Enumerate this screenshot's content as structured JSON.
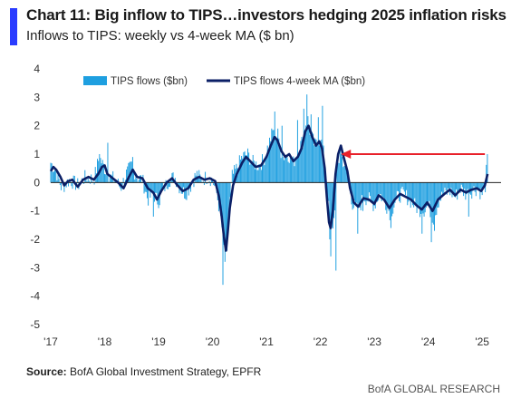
{
  "header": {
    "title": "Chart 11: Big inflow to TIPS…investors hedging 2025 inflation risks",
    "subtitle": "Inflows to TIPS: weekly vs 4-week MA ($ bn)"
  },
  "footer": {
    "source_label": "Source:",
    "source_text": "BofA Global Investment Strategy, EPFR",
    "brand": "BofA GLOBAL RESEARCH"
  },
  "colors": {
    "bars": "#1e9fe0",
    "ma_line": "#0b1f66",
    "arrow": "#e8202a",
    "accent": "#2a3cff",
    "zero_line": "#222222"
  },
  "chart_data": {
    "type": "bar",
    "title": "",
    "xlabel": "",
    "ylabel": "",
    "ylim": [
      -5,
      4
    ],
    "yticks": [
      "4",
      "3",
      "2",
      "1",
      "0",
      "-1",
      "-2",
      "-3",
      "-4",
      "-5"
    ],
    "xticks": [
      "'17",
      "'18",
      "'19",
      "'20",
      "'21",
      "'22",
      "'23",
      "'24",
      "'25"
    ],
    "x_start_year": 2017,
    "x_end_year": 2025.35,
    "legend_position": "top-left",
    "grid": false,
    "series": [
      {
        "name": "TIPS flows ($bn)",
        "type": "bar",
        "anchors": [
          [
            2017.0,
            0.7
          ],
          [
            2017.1,
            0.4
          ],
          [
            2017.2,
            -0.2
          ],
          [
            2017.35,
            0.1
          ],
          [
            2017.5,
            -0.1
          ],
          [
            2017.65,
            0.2
          ],
          [
            2017.8,
            0.1
          ],
          [
            2017.9,
            0.9
          ],
          [
            2018.0,
            0.5
          ],
          [
            2018.1,
            0.2
          ],
          [
            2018.2,
            0.1
          ],
          [
            2018.3,
            -0.2
          ],
          [
            2018.4,
            0.3
          ],
          [
            2018.5,
            0.6
          ],
          [
            2018.6,
            0.2
          ],
          [
            2018.7,
            0.1
          ],
          [
            2018.8,
            -0.6
          ],
          [
            2018.9,
            -0.4
          ],
          [
            2019.0,
            -0.7
          ],
          [
            2019.1,
            -0.2
          ],
          [
            2019.2,
            0.1
          ],
          [
            2019.3,
            0.2
          ],
          [
            2019.4,
            -0.2
          ],
          [
            2019.5,
            -0.4
          ],
          [
            2019.6,
            -0.1
          ],
          [
            2019.7,
            0.3
          ],
          [
            2019.8,
            0.1
          ],
          [
            2019.9,
            0.2
          ],
          [
            2020.0,
            0.1
          ],
          [
            2020.08,
            -0.4
          ],
          [
            2020.15,
            -1.2
          ],
          [
            2020.2,
            -2.0
          ],
          [
            2020.24,
            -3.0
          ],
          [
            2020.3,
            -1.3
          ],
          [
            2020.36,
            0.2
          ],
          [
            2020.45,
            0.5
          ],
          [
            2020.55,
            0.9
          ],
          [
            2020.65,
            1.0
          ],
          [
            2020.75,
            0.7
          ],
          [
            2020.85,
            0.6
          ],
          [
            2020.95,
            0.8
          ],
          [
            2021.05,
            1.4
          ],
          [
            2021.15,
            2.0
          ],
          [
            2021.22,
            1.4
          ],
          [
            2021.3,
            0.9
          ],
          [
            2021.4,
            1.0
          ],
          [
            2021.5,
            0.7
          ],
          [
            2021.6,
            1.2
          ],
          [
            2021.7,
            1.6
          ],
          [
            2021.75,
            2.4
          ],
          [
            2021.82,
            1.7
          ],
          [
            2021.9,
            1.3
          ],
          [
            2022.0,
            1.5
          ],
          [
            2022.05,
            1.2
          ],
          [
            2022.1,
            0.2
          ],
          [
            2022.15,
            -0.8
          ],
          [
            2022.2,
            -1.8
          ],
          [
            2022.25,
            -1.3
          ],
          [
            2022.32,
            0.6
          ],
          [
            2022.38,
            1.0
          ],
          [
            2022.45,
            0.6
          ],
          [
            2022.52,
            0.1
          ],
          [
            2022.6,
            -0.8
          ],
          [
            2022.7,
            -1.0
          ],
          [
            2022.8,
            -0.5
          ],
          [
            2022.9,
            -0.6
          ],
          [
            2023.0,
            -0.8
          ],
          [
            2023.1,
            -0.4
          ],
          [
            2023.2,
            -0.7
          ],
          [
            2023.3,
            -1.1
          ],
          [
            2023.4,
            -0.6
          ],
          [
            2023.5,
            -0.4
          ],
          [
            2023.6,
            -0.5
          ],
          [
            2023.7,
            -0.7
          ],
          [
            2023.8,
            -0.9
          ],
          [
            2023.9,
            -1.0
          ],
          [
            2024.0,
            -0.8
          ],
          [
            2024.1,
            -1.3
          ],
          [
            2024.2,
            -0.6
          ],
          [
            2024.3,
            -0.4
          ],
          [
            2024.4,
            -0.3
          ],
          [
            2024.5,
            -0.5
          ],
          [
            2024.6,
            -0.2
          ],
          [
            2024.7,
            -0.4
          ],
          [
            2024.8,
            -0.3
          ],
          [
            2024.9,
            -0.2
          ],
          [
            2025.0,
            -0.4
          ],
          [
            2025.06,
            -0.1
          ],
          [
            2025.1,
            1.0
          ]
        ]
      },
      {
        "name": "TIPS flows 4-week MA ($bn)",
        "type": "line",
        "points": [
          [
            2017.0,
            0.4
          ],
          [
            2017.05,
            0.55
          ],
          [
            2017.1,
            0.45
          ],
          [
            2017.18,
            0.2
          ],
          [
            2017.25,
            -0.1
          ],
          [
            2017.32,
            0.05
          ],
          [
            2017.4,
            0.1
          ],
          [
            2017.5,
            -0.15
          ],
          [
            2017.6,
            0.1
          ],
          [
            2017.7,
            0.2
          ],
          [
            2017.8,
            0.1
          ],
          [
            2017.88,
            0.3
          ],
          [
            2017.95,
            0.55
          ],
          [
            2018.0,
            0.6
          ],
          [
            2018.05,
            0.3
          ],
          [
            2018.15,
            0.15
          ],
          [
            2018.25,
            0.0
          ],
          [
            2018.35,
            -0.2
          ],
          [
            2018.45,
            0.2
          ],
          [
            2018.52,
            0.45
          ],
          [
            2018.6,
            0.2
          ],
          [
            2018.7,
            0.15
          ],
          [
            2018.8,
            -0.2
          ],
          [
            2018.9,
            -0.35
          ],
          [
            2018.97,
            -0.6
          ],
          [
            2019.05,
            -0.3
          ],
          [
            2019.15,
            0.0
          ],
          [
            2019.25,
            0.15
          ],
          [
            2019.35,
            -0.1
          ],
          [
            2019.45,
            -0.3
          ],
          [
            2019.55,
            -0.2
          ],
          [
            2019.65,
            0.1
          ],
          [
            2019.75,
            0.2
          ],
          [
            2019.85,
            0.1
          ],
          [
            2019.95,
            0.15
          ],
          [
            2020.05,
            0.05
          ],
          [
            2020.12,
            -0.5
          ],
          [
            2020.17,
            -1.2
          ],
          [
            2020.21,
            -1.9
          ],
          [
            2020.25,
            -2.4
          ],
          [
            2020.28,
            -1.8
          ],
          [
            2020.32,
            -0.9
          ],
          [
            2020.38,
            -0.1
          ],
          [
            2020.45,
            0.3
          ],
          [
            2020.55,
            0.7
          ],
          [
            2020.62,
            0.9
          ],
          [
            2020.7,
            0.75
          ],
          [
            2020.8,
            0.55
          ],
          [
            2020.9,
            0.6
          ],
          [
            2021.0,
            0.9
          ],
          [
            2021.08,
            1.3
          ],
          [
            2021.15,
            1.6
          ],
          [
            2021.2,
            1.5
          ],
          [
            2021.28,
            1.1
          ],
          [
            2021.35,
            0.9
          ],
          [
            2021.42,
            1.0
          ],
          [
            2021.5,
            0.75
          ],
          [
            2021.58,
            0.9
          ],
          [
            2021.65,
            1.2
          ],
          [
            2021.72,
            1.8
          ],
          [
            2021.78,
            2.0
          ],
          [
            2021.85,
            1.6
          ],
          [
            2021.92,
            1.3
          ],
          [
            2021.98,
            1.45
          ],
          [
            2022.03,
            1.2
          ],
          [
            2022.08,
            0.5
          ],
          [
            2022.12,
            -0.5
          ],
          [
            2022.16,
            -1.4
          ],
          [
            2022.19,
            -1.6
          ],
          [
            2022.23,
            -1.0
          ],
          [
            2022.28,
            0.3
          ],
          [
            2022.33,
            1.0
          ],
          [
            2022.38,
            1.3
          ],
          [
            2022.43,
            0.9
          ],
          [
            2022.5,
            0.4
          ],
          [
            2022.55,
            -0.2
          ],
          [
            2022.62,
            -0.7
          ],
          [
            2022.7,
            -0.85
          ],
          [
            2022.8,
            -0.55
          ],
          [
            2022.9,
            -0.6
          ],
          [
            2023.0,
            -0.75
          ],
          [
            2023.08,
            -0.45
          ],
          [
            2023.18,
            -0.6
          ],
          [
            2023.28,
            -0.9
          ],
          [
            2023.38,
            -0.6
          ],
          [
            2023.48,
            -0.4
          ],
          [
            2023.58,
            -0.5
          ],
          [
            2023.68,
            -0.6
          ],
          [
            2023.78,
            -0.8
          ],
          [
            2023.88,
            -0.95
          ],
          [
            2023.98,
            -0.7
          ],
          [
            2024.08,
            -1.0
          ],
          [
            2024.18,
            -0.6
          ],
          [
            2024.3,
            -0.4
          ],
          [
            2024.4,
            -0.25
          ],
          [
            2024.5,
            -0.45
          ],
          [
            2024.6,
            -0.25
          ],
          [
            2024.7,
            -0.35
          ],
          [
            2024.8,
            -0.25
          ],
          [
            2024.9,
            -0.2
          ],
          [
            2024.98,
            -0.3
          ],
          [
            2025.05,
            -0.1
          ],
          [
            2025.1,
            0.3
          ]
        ]
      }
    ],
    "annotations": [
      {
        "type": "arrow",
        "from": [
          2025.05,
          1.0
        ],
        "to": [
          2022.38,
          1.0
        ]
      }
    ]
  }
}
